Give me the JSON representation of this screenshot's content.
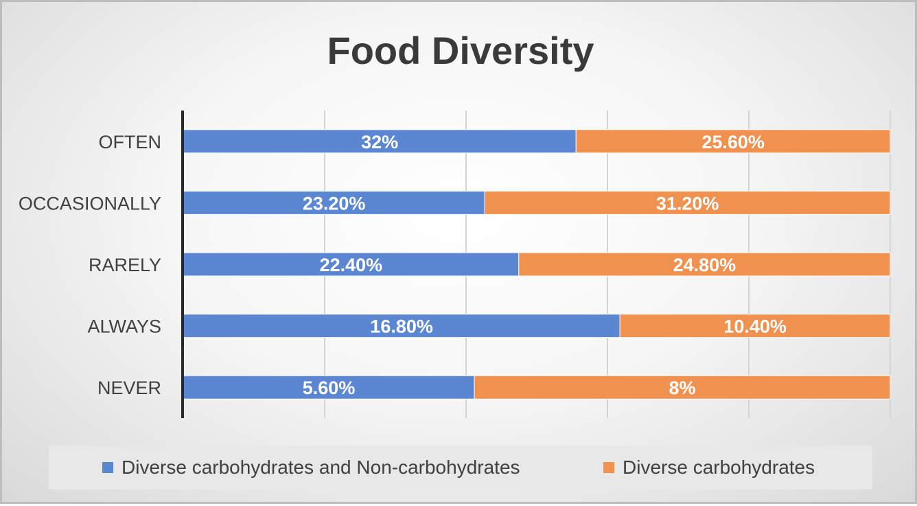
{
  "chart_data": {
    "type": "bar",
    "orientation": "horizontal",
    "stacked": "percent",
    "title": "Food Diversity",
    "categories": [
      "OFTEN",
      "OCCASIONALLY",
      "RARELY",
      "ALWAYS",
      "NEVER"
    ],
    "series": [
      {
        "name": "Diverse carbohydrates and Non-carbohydrates",
        "color": "#5b87d2",
        "values": [
          32,
          23.2,
          22.4,
          16.8,
          5.6
        ],
        "labels": [
          "32%",
          "23.20%",
          "22.40%",
          "16.80%",
          "5.60%"
        ]
      },
      {
        "name": "Diverse carbohydrates",
        "color": "#f0914f",
        "values": [
          25.6,
          31.2,
          24.8,
          10.4,
          8
        ],
        "labels": [
          "25.60%",
          "31.20%",
          "24.80%",
          "10.40%",
          "8%"
        ]
      }
    ],
    "xlim": [
      0,
      100
    ],
    "gridlines": 5,
    "legend_position": "bottom"
  }
}
